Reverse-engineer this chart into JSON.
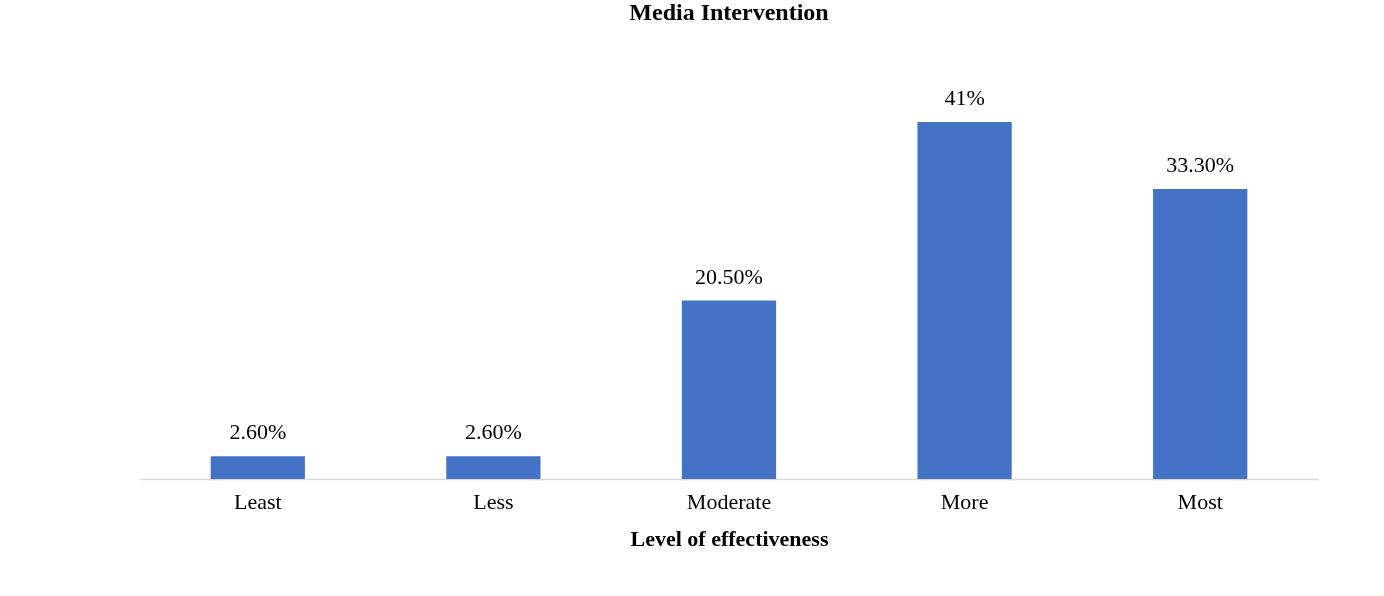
{
  "chart_data": {
    "type": "bar",
    "title": "Media Intervention",
    "xlabel": "Level of effectiveness",
    "categories": [
      "Least",
      "Less",
      "Moderate",
      "More",
      "Most"
    ],
    "values": [
      2.6,
      2.6,
      20.5,
      41,
      33.3
    ],
    "value_labels": [
      "2.60%",
      "2.60%",
      "20.50%",
      "41%",
      "33.30%"
    ],
    "color": "#4472c4"
  }
}
